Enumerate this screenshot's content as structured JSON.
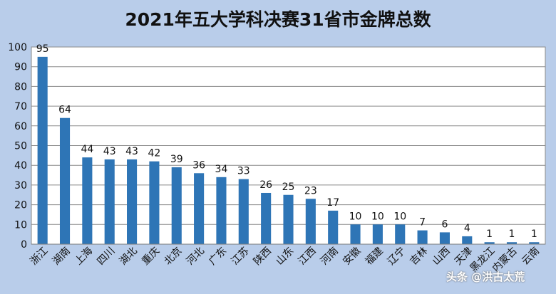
{
  "chart_data": {
    "type": "bar",
    "title": "2021年五大学科决赛31省市金牌总数",
    "categories": [
      "浙江",
      "湖南",
      "上海",
      "四川",
      "湖北",
      "重庆",
      "北京",
      "河北",
      "广东",
      "江苏",
      "陕西",
      "山东",
      "江西",
      "河南",
      "安徽",
      "福建",
      "辽宁",
      "吉林",
      "山西",
      "天津",
      "黑龙江",
      "内蒙古",
      "云南"
    ],
    "values": [
      95,
      64,
      44,
      43,
      43,
      42,
      39,
      36,
      34,
      33,
      26,
      25,
      23,
      17,
      10,
      10,
      10,
      7,
      6,
      4,
      1,
      1,
      1
    ],
    "ylim": [
      0,
      100
    ],
    "yticks": [
      0,
      10,
      20,
      30,
      40,
      50,
      60,
      70,
      80,
      90,
      100
    ],
    "xlabel": "",
    "ylabel": "",
    "grid": true,
    "bar_color": "#2e75b6",
    "plot_background": "#ffffff",
    "background": "#b9cdea"
  },
  "watermark": "头条 @洪古太荒"
}
